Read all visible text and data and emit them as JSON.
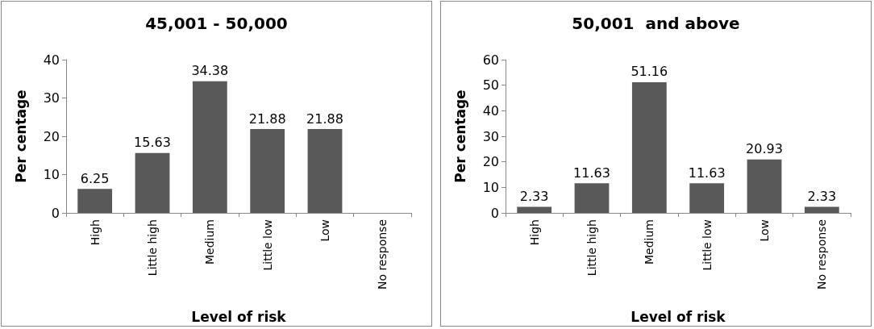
{
  "chart_data": [
    {
      "type": "bar",
      "title": "45,001 - 50,000",
      "xlabel": "Level of risk",
      "ylabel": "Per centage",
      "categories": [
        "High",
        "Little high",
        "Medium",
        "Little low",
        "Low",
        "No response"
      ],
      "values": [
        6.25,
        15.63,
        34.38,
        21.88,
        21.88,
        null
      ],
      "color": "#595959",
      "ylim": [
        0,
        40
      ],
      "yticks": [
        0,
        10,
        20,
        30,
        40
      ],
      "grid": false,
      "data_labels": true
    },
    {
      "type": "bar",
      "title": "50,001  and above",
      "xlabel": "Level of risk",
      "ylabel": "Per centage",
      "categories": [
        "High",
        "Little high",
        "Medium",
        "Little low",
        "Low",
        "No response"
      ],
      "values": [
        2.33,
        11.63,
        51.16,
        11.63,
        20.93,
        2.33
      ],
      "color": "#595959",
      "ylim": [
        0,
        60
      ],
      "yticks": [
        0,
        10,
        20,
        30,
        40,
        50,
        60
      ],
      "grid": false,
      "data_labels": true
    }
  ]
}
